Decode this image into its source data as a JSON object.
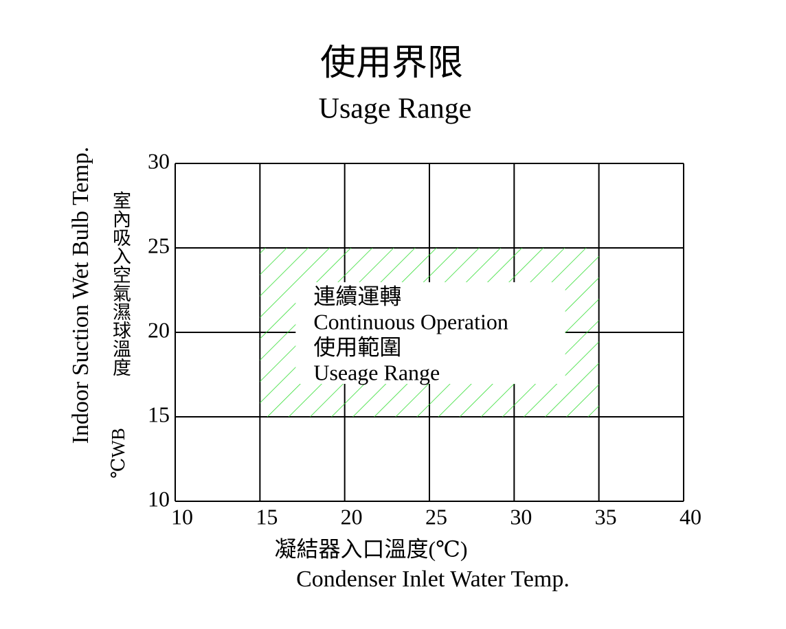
{
  "chart_data": {
    "type": "range",
    "title": "使用界限",
    "subtitle": "Usage Range",
    "x_label": [
      "凝結器入口溫度(℃)",
      "Condenser Inlet Water Temp."
    ],
    "y_label": [
      "Indoor Suction Wet Bulb Temp.",
      "室內吸入空氣濕球溫度",
      "℃WB"
    ],
    "xlim": [
      10,
      40
    ],
    "ylim": [
      10,
      30
    ],
    "xticks": [
      10,
      15,
      20,
      25,
      30,
      35,
      40
    ],
    "yticks": [
      10,
      15,
      20,
      25,
      30
    ],
    "grid": true,
    "region": {
      "x": [
        15,
        35
      ],
      "y": [
        15,
        25
      ],
      "color": "#33dd33",
      "labels": [
        "連續運轉",
        "Continuous Operation",
        "使用範圍",
        "Useage Range"
      ]
    }
  }
}
